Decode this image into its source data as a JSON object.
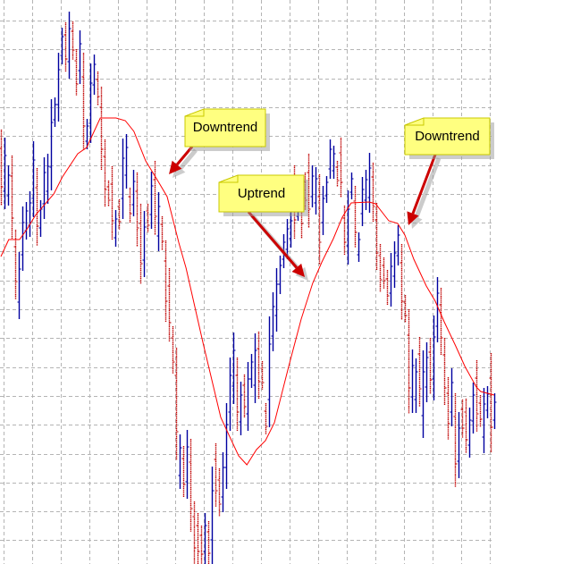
{
  "chart_data": {
    "type": "ohlc",
    "title": "",
    "xlabel": "",
    "ylabel": "",
    "ylim": [
      9,
      640
    ],
    "grid": true,
    "colors": {
      "up": "#0000a0",
      "down": "#c00000",
      "ma": "#ff0000",
      "grid": "#b4b4b4",
      "note_fill": "#ffff80",
      "note_border": "#c8c800",
      "arrow": "#cc0000"
    },
    "bars_format": [
      "open",
      "high",
      "low",
      "close"
    ],
    "bars": [
      [
        474,
        495,
        410,
        431
      ],
      [
        426,
        486,
        406,
        466
      ],
      [
        421,
        455,
        410,
        444
      ],
      [
        443,
        466,
        373,
        396
      ],
      [
        364,
        383,
        305,
        325
      ],
      [
        302,
        358,
        283,
        339
      ],
      [
        355,
        409,
        337,
        391
      ],
      [
        382,
        414,
        372,
        404
      ],
      [
        388,
        426,
        375,
        413
      ],
      [
        418,
        482,
        397,
        461
      ],
      [
        430,
        452,
        365,
        387
      ],
      [
        385,
        416,
        375,
        406
      ],
      [
        412,
        464,
        395,
        447
      ],
      [
        426,
        468,
        412,
        454
      ],
      [
        453,
        529,
        427,
        503
      ],
      [
        506,
        531,
        498,
        523
      ],
      [
        523,
        581,
        504,
        562
      ],
      [
        578,
        609,
        568,
        599
      ],
      [
        601,
        615,
        560,
        574
      ],
      [
        571,
        627,
        552,
        608
      ],
      [
        605,
        616,
        573,
        584
      ],
      [
        572,
        585,
        533,
        546
      ],
      [
        561,
        606,
        546,
        591
      ],
      [
        554,
        581,
        472,
        499
      ],
      [
        482,
        507,
        473,
        499
      ],
      [
        502,
        569,
        480,
        547
      ],
      [
        545,
        579,
        534,
        568
      ],
      [
        551,
        560,
        522,
        532
      ],
      [
        520,
        543,
        450,
        473
      ],
      [
        465,
        484,
        409,
        428
      ],
      [
        431,
        438,
        409,
        416
      ],
      [
        434,
        454,
        372,
        393
      ],
      [
        374,
        405,
        364,
        395
      ],
      [
        409,
        417,
        383,
        392
      ],
      [
        418,
        485,
        395,
        463
      ],
      [
        444,
        490,
        429,
        475
      ],
      [
        420,
        430,
        391,
        401
      ],
      [
        411,
        450,
        398,
        437
      ],
      [
        426,
        447,
        364,
        385
      ],
      [
        390,
        412,
        322,
        345
      ],
      [
        349,
        404,
        330,
        386
      ],
      [
        404,
        412,
        380,
        388
      ],
      [
        400,
        448,
        384,
        432
      ],
      [
        439,
        460,
        377,
        398
      ],
      [
        376,
        425,
        359,
        409
      ],
      [
        389,
        398,
        360,
        370
      ],
      [
        348,
        371,
        280,
        303
      ],
      [
        320,
        340,
        258,
        279
      ],
      [
        262,
        275,
        222,
        235
      ],
      [
        220,
        251,
        125,
        157
      ],
      [
        108,
        154,
        93,
        139
      ],
      [
        127,
        141,
        84,
        98
      ],
      [
        101,
        159,
        82,
        140
      ],
      [
        123,
        149,
        45,
        71
      ],
      [
        62,
        79,
        9,
        27
      ],
      [
        52,
        66,
        9,
        23
      ],
      [
        41,
        52,
        9,
        20
      ],
      [
        23,
        66,
        9,
        52
      ],
      [
        45,
        57,
        9,
        21
      ],
      [
        36,
        118,
        9,
        91
      ],
      [
        126,
        144,
        73,
        91
      ],
      [
        103,
        116,
        62,
        76
      ],
      [
        84,
        134,
        67,
        117
      ],
      [
        117,
        189,
        93,
        165
      ],
      [
        179,
        240,
        158,
        220
      ],
      [
        208,
        268,
        188,
        248
      ],
      [
        220,
        240,
        158,
        179
      ],
      [
        168,
        213,
        153,
        198
      ],
      [
        209,
        221,
        173,
        185
      ],
      [
        177,
        235,
        158,
        216
      ],
      [
        216,
        244,
        206,
        235
      ],
      [
        209,
        267,
        189,
        248
      ],
      [
        250,
        269,
        194,
        213
      ],
      [
        228,
        236,
        204,
        212
      ],
      [
        180,
        189,
        154,
        163
      ],
      [
        193,
        286,
        162,
        255
      ],
      [
        264,
        313,
        247,
        297
      ],
      [
        287,
        340,
        269,
        322
      ],
      [
        322,
        354,
        311,
        343
      ],
      [
        350,
        378,
        340,
        369
      ],
      [
        361,
        395,
        350,
        384
      ],
      [
        373,
        403,
        363,
        393
      ],
      [
        435,
        455,
        373,
        394
      ],
      [
        398,
        412,
        393,
        407
      ],
      [
        423,
        440,
        373,
        390
      ],
      [
        437,
        447,
        405,
        416
      ],
      [
        447,
        468,
        385,
        406
      ],
      [
        420,
        455,
        408,
        443
      ],
      [
        413,
        453,
        400,
        440
      ],
      [
        420,
        445,
        344,
        369
      ],
      [
        391,
        432,
        377,
        418
      ],
      [
        421,
        443,
        413,
        436
      ],
      [
        451,
        484,
        440,
        473
      ],
      [
        449,
        477,
        440,
        468
      ],
      [
        453,
        460,
        431,
        438
      ],
      [
        469,
        486,
        419,
        436
      ],
      [
        396,
        410,
        355,
        369
      ],
      [
        365,
        427,
        344,
        406
      ],
      [
        425,
        447,
        417,
        440
      ],
      [
        415,
        432,
        363,
        380
      ],
      [
        355,
        380,
        347,
        372
      ],
      [
        401,
        442,
        387,
        428
      ],
      [
        416,
        450,
        405,
        439
      ],
      [
        419,
        469,
        402,
        452
      ],
      [
        442,
        458,
        392,
        409
      ],
      [
        394,
        413,
        338,
        357
      ],
      [
        354,
        367,
        313,
        327
      ],
      [
        343,
        352,
        317,
        326
      ],
      [
        328,
        338,
        299,
        309
      ],
      [
        312,
        357,
        297,
        342
      ],
      [
        331,
        370,
        318,
        357
      ],
      [
        354,
        388,
        343,
        377
      ],
      [
        346,
        367,
        282,
        303
      ],
      [
        302,
        310,
        279,
        287
      ],
      [
        265,
        294,
        177,
        206
      ],
      [
        196,
        249,
        178,
        231
      ],
      [
        193,
        239,
        178,
        224
      ],
      [
        244,
        263,
        185,
        205
      ],
      [
        175,
        248,
        150,
        224
      ],
      [
        207,
        257,
        190,
        240
      ],
      [
        246,
        262,
        199,
        215
      ],
      [
        216,
        287,
        192,
        263
      ],
      [
        275,
        330,
        257,
        312
      ],
      [
        299,
        318,
        243,
        262
      ],
      [
        243,
        262,
        187,
        206
      ],
      [
        200,
        218,
        148,
        166
      ],
      [
        179,
        228,
        163,
        212
      ],
      [
        174,
        200,
        95,
        121
      ],
      [
        124,
        179,
        105,
        161
      ],
      [
        182,
        193,
        150,
        161
      ],
      [
        179,
        194,
        133,
        148
      ],
      [
        142,
        184,
        128,
        170
      ],
      [
        169,
        212,
        155,
        198
      ],
      [
        217,
        237,
        157,
        177
      ],
      [
        189,
        198,
        162,
        171
      ],
      [
        151,
        206,
        133,
        188
      ],
      [
        181,
        208,
        172,
        199
      ],
      [
        217,
        245,
        134,
        162
      ],
      [
        170,
        200,
        160,
        190
      ]
    ],
    "moving_average": [
      [
        0,
        353
      ],
      [
        2.2,
        372
      ],
      [
        5.2,
        372
      ],
      [
        7.2,
        383
      ],
      [
        9.8,
        400
      ],
      [
        14.8,
        423
      ],
      [
        17.2,
        442
      ],
      [
        21.5,
        468
      ],
      [
        24,
        475
      ],
      [
        27.8,
        508
      ],
      [
        32.2,
        508
      ],
      [
        34.8,
        505
      ],
      [
        37.2,
        493
      ],
      [
        40.5,
        460
      ],
      [
        44,
        437
      ],
      [
        46.5,
        420
      ],
      [
        49.8,
        368
      ],
      [
        51.8,
        340
      ],
      [
        56.5,
        257
      ],
      [
        61.5,
        173
      ],
      [
        66.5,
        130
      ],
      [
        68.8,
        120
      ],
      [
        71.5,
        137
      ],
      [
        74,
        147
      ],
      [
        76.5,
        167
      ],
      [
        80.5,
        230
      ],
      [
        84,
        283
      ],
      [
        87.2,
        323
      ],
      [
        89.8,
        347
      ],
      [
        93,
        373
      ],
      [
        95.5,
        397
      ],
      [
        98,
        413
      ],
      [
        103,
        414
      ],
      [
        104.8,
        412
      ],
      [
        108.5,
        393
      ],
      [
        111,
        390
      ],
      [
        113,
        377
      ],
      [
        115.5,
        350
      ],
      [
        119,
        320
      ],
      [
        121.5,
        303
      ],
      [
        124,
        280
      ],
      [
        127.2,
        253
      ],
      [
        129.8,
        230
      ],
      [
        133,
        207
      ],
      [
        134.2,
        202
      ],
      [
        138,
        198
      ]
    ]
  },
  "annotations": [
    {
      "text": "Downtrend",
      "arrow_from_bar": 53,
      "arrow_to_bar": 47,
      "arrow_to_price": 445
    },
    {
      "text": "Uptrend",
      "arrow_from_bar": 69,
      "arrow_to_bar": 85,
      "arrow_to_price": 330
    },
    {
      "text": "Downtrend",
      "arrow_from_bar": 121,
      "arrow_to_bar": 114,
      "arrow_to_price": 388
    }
  ]
}
